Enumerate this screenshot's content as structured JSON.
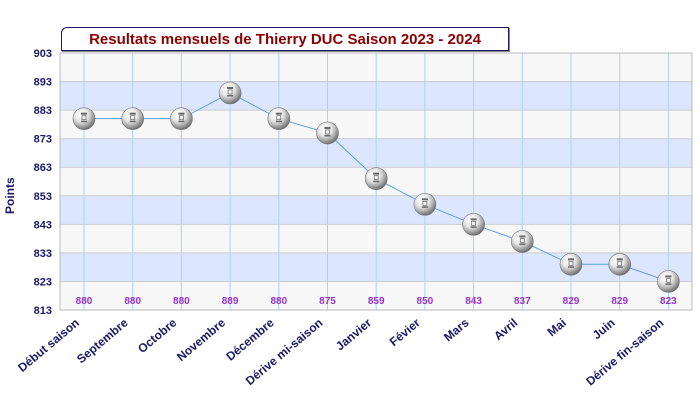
{
  "chart_data": {
    "type": "line",
    "title": "Resultats mensuels de Thierry DUC Saison 2023 - 2024",
    "ylabel": "Points",
    "xlabel": "",
    "ylim": [
      813,
      903
    ],
    "yticks": [
      903,
      893,
      883,
      873,
      863,
      853,
      843,
      833,
      823,
      813
    ],
    "grid": true,
    "categories": [
      "Début saison",
      "Septembre",
      "Octobre",
      "Novembre",
      "Décembre",
      "Dérive mi-saison",
      "Janvier",
      "Févier",
      "Mars",
      "Avril",
      "Mai",
      "Juin",
      "Dérive fin-saison"
    ],
    "series": [
      {
        "values": [
          880,
          880,
          880,
          889,
          880,
          875,
          859,
          850,
          843,
          837,
          829,
          829,
          823
        ]
      }
    ],
    "data_labels": [
      "880",
      "880",
      "880",
      "889",
      "880",
      "875",
      "859",
      "850",
      "843",
      "837",
      "829",
      "829",
      "823"
    ],
    "colors": {
      "line": "#5aa0e6",
      "band_light": "#f7f7f7",
      "band_blue": "#dde6ff",
      "axis_text": "#1a1a66",
      "data_label": "#9932cc",
      "title": "#8b0000"
    },
    "marker_icon": "trophy-ball-icon"
  }
}
